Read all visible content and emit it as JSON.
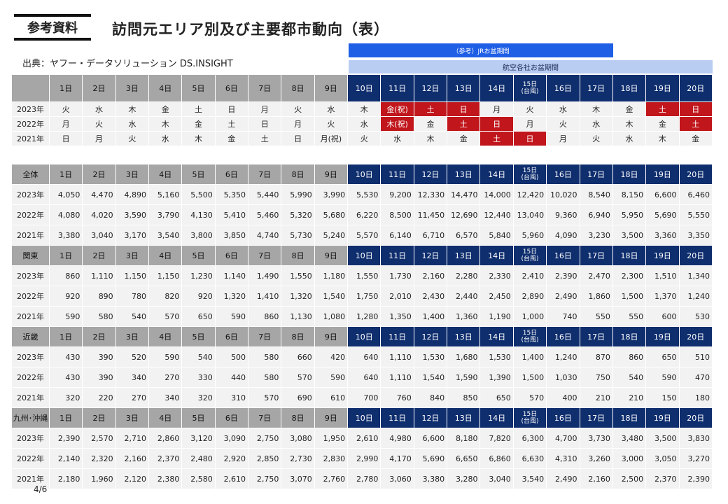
{
  "tag": "参考資料",
  "title": "訪問元エリア別及び主要都市動向（表）",
  "source": "出典：ヤフー・データソリューション DS.INSIGHT",
  "band_jr": "（参考）JRお盆期間",
  "band_air": "航空各社お盆期間",
  "page": "4/6",
  "days": [
    "1日",
    "2日",
    "3日",
    "4日",
    "5日",
    "6日",
    "7日",
    "8日",
    "9日",
    "10日",
    "11日",
    "12日",
    "13日",
    "14日",
    "15日\n(台風)",
    "16日",
    "17日",
    "18日",
    "19日",
    "20日"
  ],
  "weekdays": [
    {
      "year": "2023年",
      "days": [
        "火",
        "水",
        "木",
        "金",
        "土",
        "日",
        "月",
        "火",
        "水",
        "木",
        "金(祝)",
        "土",
        "日",
        "月",
        "火",
        "水",
        "木",
        "金",
        "土",
        "日"
      ],
      "holidays": [
        10,
        11,
        12,
        18,
        19
      ]
    },
    {
      "year": "2022年",
      "days": [
        "月",
        "火",
        "水",
        "木",
        "金",
        "土",
        "日",
        "月",
        "火",
        "水",
        "木(祝)",
        "金",
        "土",
        "日",
        "月",
        "火",
        "水",
        "木",
        "金",
        "土"
      ],
      "holidays": [
        10,
        12,
        13,
        19
      ]
    },
    {
      "year": "2021年",
      "days": [
        "日",
        "月",
        "火",
        "水",
        "木",
        "金",
        "土",
        "日",
        "月(祝)",
        "火",
        "水",
        "木",
        "金",
        "土",
        "日",
        "月",
        "火",
        "水",
        "木",
        "金"
      ],
      "holidays": [
        13,
        14
      ]
    }
  ],
  "sections": [
    {
      "label": "全体",
      "rows": [
        {
          "year": "2023年",
          "values": [
            "4,050",
            "4,470",
            "4,890",
            "5,160",
            "5,500",
            "5,350",
            "5,440",
            "5,990",
            "3,990",
            "5,530",
            "9,200",
            "12,330",
            "14,470",
            "14,000",
            "12,420",
            "10,020",
            "8,540",
            "8,150",
            "6,600",
            "6,460"
          ]
        },
        {
          "year": "2022年",
          "values": [
            "4,080",
            "4,020",
            "3,590",
            "3,790",
            "4,130",
            "5,410",
            "5,460",
            "5,320",
            "5,680",
            "6,220",
            "8,500",
            "11,450",
            "12,690",
            "12,440",
            "13,040",
            "9,360",
            "6,940",
            "5,950",
            "5,690",
            "5,550"
          ]
        },
        {
          "year": "2021年",
          "values": [
            "3,380",
            "3,040",
            "3,170",
            "3,540",
            "3,800",
            "3,850",
            "4,740",
            "5,730",
            "5,240",
            "5,570",
            "6,140",
            "6,710",
            "6,570",
            "5,840",
            "5,960",
            "4,090",
            "3,230",
            "3,500",
            "3,360",
            "3,350"
          ]
        }
      ]
    },
    {
      "label": "関東",
      "rows": [
        {
          "year": "2023年",
          "values": [
            "860",
            "1,110",
            "1,150",
            "1,150",
            "1,230",
            "1,140",
            "1,490",
            "1,550",
            "1,180",
            "1,550",
            "1,730",
            "2,160",
            "2,280",
            "2,330",
            "2,410",
            "2,390",
            "2,470",
            "2,300",
            "1,510",
            "1,340"
          ]
        },
        {
          "year": "2022年",
          "values": [
            "920",
            "890",
            "780",
            "820",
            "920",
            "1,320",
            "1,410",
            "1,320",
            "1,540",
            "1,750",
            "2,010",
            "2,430",
            "2,440",
            "2,450",
            "2,890",
            "2,490",
            "1,860",
            "1,500",
            "1,370",
            "1,240"
          ]
        },
        {
          "year": "2021年",
          "values": [
            "590",
            "580",
            "540",
            "570",
            "650",
            "590",
            "860",
            "1,130",
            "1,080",
            "1,280",
            "1,350",
            "1,400",
            "1,360",
            "1,190",
            "1,000",
            "740",
            "550",
            "550",
            "600",
            "530"
          ]
        }
      ]
    },
    {
      "label": "近畿",
      "rows": [
        {
          "year": "2023年",
          "values": [
            "430",
            "390",
            "520",
            "590",
            "540",
            "500",
            "580",
            "660",
            "420",
            "640",
            "1,110",
            "1,530",
            "1,680",
            "1,530",
            "1,400",
            "1,240",
            "870",
            "860",
            "650",
            "510"
          ]
        },
        {
          "year": "2022年",
          "values": [
            "430",
            "390",
            "340",
            "270",
            "330",
            "440",
            "580",
            "570",
            "590",
            "640",
            "1,110",
            "1,540",
            "1,590",
            "1,390",
            "1,500",
            "1,030",
            "750",
            "540",
            "590",
            "470"
          ]
        },
        {
          "year": "2021年",
          "values": [
            "320",
            "220",
            "270",
            "340",
            "320",
            "310",
            "570",
            "690",
            "610",
            "700",
            "760",
            "840",
            "850",
            "650",
            "570",
            "400",
            "210",
            "210",
            "150",
            "180"
          ]
        }
      ]
    },
    {
      "label": "九州･沖縄",
      "rows": [
        {
          "year": "2023年",
          "values": [
            "2,390",
            "2,570",
            "2,710",
            "2,860",
            "3,120",
            "3,090",
            "2,750",
            "3,080",
            "1,950",
            "2,610",
            "4,980",
            "6,600",
            "8,180",
            "7,820",
            "6,300",
            "4,700",
            "3,730",
            "3,480",
            "3,500",
            "3,830"
          ]
        },
        {
          "year": "2022年",
          "values": [
            "2,140",
            "2,320",
            "2,160",
            "2,370",
            "2,480",
            "2,920",
            "2,850",
            "2,730",
            "2,830",
            "2,990",
            "4,170",
            "5,690",
            "6,650",
            "6,860",
            "6,630",
            "4,310",
            "3,260",
            "3,000",
            "3,050",
            "3,270"
          ]
        },
        {
          "year": "2021年",
          "values": [
            "2,180",
            "1,960",
            "2,120",
            "2,380",
            "2,580",
            "2,610",
            "2,750",
            "3,070",
            "2,760",
            "2,780",
            "3,060",
            "3,380",
            "3,280",
            "3,040",
            "3,540",
            "2,490",
            "2,160",
            "2,500",
            "2,370",
            "2,390"
          ]
        }
      ]
    }
  ]
}
